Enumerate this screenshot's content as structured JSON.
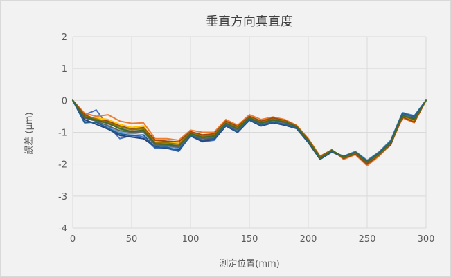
{
  "chart_data": {
    "type": "line",
    "title": "垂直方向真直度",
    "xlabel": "測定位置(mm)",
    "ylabel": "誤差 (μm)",
    "xlim": [
      0,
      300
    ],
    "ylim": [
      -4,
      2
    ],
    "xticks": [
      0,
      50,
      100,
      150,
      200,
      250,
      300
    ],
    "yticks": [
      -4,
      -3,
      -2,
      -1,
      0,
      1,
      2
    ],
    "x": [
      0,
      10,
      20,
      30,
      40,
      50,
      60,
      70,
      80,
      90,
      100,
      110,
      120,
      130,
      140,
      150,
      160,
      170,
      180,
      190,
      200,
      210,
      220,
      230,
      240,
      250,
      260,
      270,
      280,
      290,
      300
    ],
    "grid": true,
    "legend": "none",
    "series": [
      {
        "color": "#4472c4",
        "values": [
          0,
          -0.45,
          -0.3,
          -0.8,
          -1.2,
          -1.1,
          -1.15,
          -1.5,
          -1.5,
          -1.6,
          -1.1,
          -1.3,
          -1.25,
          -0.8,
          -1.0,
          -0.6,
          -0.8,
          -0.7,
          -0.75,
          -0.85,
          -1.3,
          -1.85,
          -1.6,
          -1.8,
          -1.65,
          -1.95,
          -1.7,
          -1.4,
          -0.45,
          -0.55,
          0
        ]
      },
      {
        "color": "#ed7d31",
        "values": [
          0,
          -0.4,
          -0.5,
          -0.45,
          -0.65,
          -0.72,
          -0.7,
          -1.2,
          -1.2,
          -1.25,
          -0.93,
          -1.0,
          -1.0,
          -0.6,
          -0.78,
          -0.45,
          -0.6,
          -0.52,
          -0.6,
          -0.78,
          -1.2,
          -1.75,
          -1.55,
          -1.85,
          -1.7,
          -2.05,
          -1.75,
          -1.38,
          -0.55,
          -0.7,
          0
        ]
      },
      {
        "color": "#a5a5a5",
        "values": [
          0,
          -0.55,
          -0.6,
          -0.75,
          -0.85,
          -0.95,
          -0.9,
          -1.35,
          -1.35,
          -1.4,
          -1.05,
          -1.15,
          -1.1,
          -0.7,
          -0.88,
          -0.55,
          -0.7,
          -0.62,
          -0.68,
          -0.82,
          -1.25,
          -1.8,
          -1.58,
          -1.78,
          -1.65,
          -1.9,
          -1.65,
          -1.3,
          -0.4,
          -0.5,
          0
        ]
      },
      {
        "color": "#ffc000",
        "values": [
          0,
          -0.5,
          -0.55,
          -0.6,
          -0.75,
          -0.85,
          -0.8,
          -1.3,
          -1.3,
          -1.35,
          -1.0,
          -1.1,
          -1.05,
          -0.68,
          -0.85,
          -0.5,
          -0.68,
          -0.58,
          -0.65,
          -0.8,
          -1.22,
          -1.78,
          -1.55,
          -1.8,
          -1.62,
          -1.92,
          -1.68,
          -1.33,
          -0.5,
          -0.65,
          0
        ]
      },
      {
        "color": "#5b9bd5",
        "values": [
          0,
          -0.65,
          -0.7,
          -0.85,
          -1.0,
          -1.05,
          -1.0,
          -1.4,
          -1.45,
          -1.5,
          -1.08,
          -1.2,
          -1.18,
          -0.75,
          -0.95,
          -0.58,
          -0.75,
          -0.65,
          -0.72,
          -0.85,
          -1.28,
          -1.82,
          -1.6,
          -1.75,
          -1.6,
          -1.88,
          -1.62,
          -1.25,
          -0.38,
          -0.48,
          0
        ]
      },
      {
        "color": "#70ad47",
        "values": [
          0,
          -0.5,
          -0.65,
          -0.7,
          -0.9,
          -1.0,
          -0.95,
          -1.38,
          -1.4,
          -1.45,
          -1.05,
          -1.18,
          -1.15,
          -0.72,
          -0.9,
          -0.55,
          -0.72,
          -0.6,
          -0.7,
          -0.82,
          -1.25,
          -1.8,
          -1.57,
          -1.77,
          -1.63,
          -1.93,
          -1.67,
          -1.35,
          -0.45,
          -0.6,
          0
        ]
      },
      {
        "color": "#264478",
        "values": [
          0,
          -0.6,
          -0.75,
          -0.9,
          -1.1,
          -1.15,
          -1.2,
          -1.45,
          -1.5,
          -1.55,
          -1.12,
          -1.28,
          -1.22,
          -0.8,
          -1.0,
          -0.62,
          -0.8,
          -0.7,
          -0.78,
          -0.88,
          -1.32,
          -1.85,
          -1.62,
          -1.78,
          -1.68,
          -1.97,
          -1.7,
          -1.38,
          -0.48,
          -0.58,
          0
        ]
      },
      {
        "color": "#9e480e",
        "values": [
          0,
          -0.45,
          -0.6,
          -0.65,
          -0.8,
          -0.9,
          -0.85,
          -1.25,
          -1.28,
          -1.3,
          -0.98,
          -1.08,
          -1.05,
          -0.65,
          -0.82,
          -0.5,
          -0.65,
          -0.55,
          -0.63,
          -0.8,
          -1.22,
          -1.77,
          -1.55,
          -1.82,
          -1.68,
          -2.0,
          -1.72,
          -1.36,
          -0.52,
          -0.68,
          0
        ]
      },
      {
        "color": "#636363",
        "values": [
          0,
          -0.55,
          -0.65,
          -0.8,
          -0.95,
          -1.0,
          -0.98,
          -1.4,
          -1.42,
          -1.47,
          -1.08,
          -1.2,
          -1.17,
          -0.75,
          -0.92,
          -0.57,
          -0.73,
          -0.63,
          -0.7,
          -0.84,
          -1.27,
          -1.82,
          -1.58,
          -1.78,
          -1.64,
          -1.93,
          -1.66,
          -1.3,
          -0.42,
          -0.52,
          0
        ]
      },
      {
        "color": "#997300",
        "values": [
          0,
          -0.5,
          -0.58,
          -0.7,
          -0.82,
          -0.92,
          -0.88,
          -1.32,
          -1.33,
          -1.38,
          -1.02,
          -1.12,
          -1.08,
          -0.7,
          -0.86,
          -0.53,
          -0.69,
          -0.59,
          -0.66,
          -0.81,
          -1.24,
          -1.79,
          -1.56,
          -1.79,
          -1.64,
          -1.94,
          -1.69,
          -1.34,
          -0.47,
          -0.62,
          0
        ]
      },
      {
        "color": "#255e91",
        "values": [
          0,
          -0.7,
          -0.68,
          -0.88,
          -1.05,
          -1.1,
          -1.08,
          -1.47,
          -1.47,
          -1.58,
          -1.1,
          -1.25,
          -1.2,
          -0.78,
          -0.98,
          -0.6,
          -0.78,
          -0.68,
          -0.75,
          -0.87,
          -1.3,
          -1.84,
          -1.6,
          -1.76,
          -1.62,
          -1.9,
          -1.64,
          -1.28,
          -0.4,
          -0.5,
          0
        ]
      },
      {
        "color": "#43682b",
        "values": [
          0,
          -0.52,
          -0.62,
          -0.72,
          -0.88,
          -0.98,
          -0.93,
          -1.36,
          -1.38,
          -1.43,
          -1.04,
          -1.16,
          -1.12,
          -0.72,
          -0.89,
          -0.55,
          -0.71,
          -0.61,
          -0.68,
          -0.82,
          -1.26,
          -1.81,
          -1.57,
          -1.78,
          -1.63,
          -1.93,
          -1.67,
          -1.32,
          -0.46,
          -0.6,
          0
        ]
      }
    ]
  }
}
